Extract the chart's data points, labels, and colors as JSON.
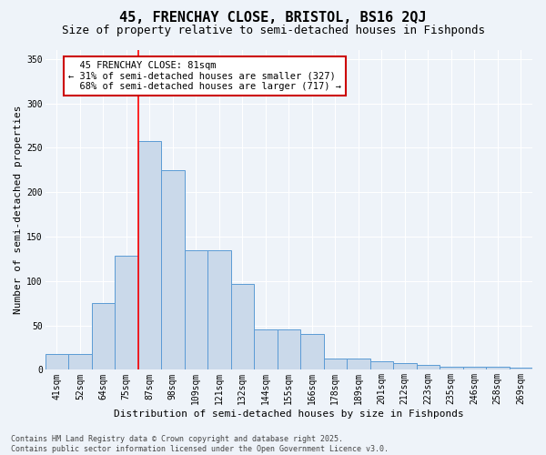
{
  "title_line1": "45, FRENCHAY CLOSE, BRISTOL, BS16 2QJ",
  "title_line2": "Size of property relative to semi-detached houses in Fishponds",
  "xlabel": "Distribution of semi-detached houses by size in Fishponds",
  "ylabel": "Number of semi-detached properties",
  "categories": [
    "41sqm",
    "52sqm",
    "64sqm",
    "75sqm",
    "87sqm",
    "98sqm",
    "109sqm",
    "121sqm",
    "132sqm",
    "144sqm",
    "155sqm",
    "166sqm",
    "178sqm",
    "189sqm",
    "201sqm",
    "212sqm",
    "223sqm",
    "235sqm",
    "246sqm",
    "258sqm",
    "269sqm"
  ],
  "values": [
    18,
    18,
    75,
    128,
    258,
    225,
    135,
    135,
    97,
    45,
    45,
    40,
    13,
    13,
    10,
    8,
    6,
    3,
    3,
    3,
    2
  ],
  "bar_color": "#cad9ea",
  "bar_edge_color": "#5b9bd5",
  "marker_bin_index": 4,
  "red_line_x": 3.5,
  "ylim": [
    0,
    360
  ],
  "yticks": [
    0,
    50,
    100,
    150,
    200,
    250,
    300,
    350
  ],
  "background_color": "#eef3f9",
  "grid_color": "#d0d8e4",
  "white_grid": "#ffffff",
  "property_label": "45 FRENCHAY CLOSE: 81sqm",
  "pct_smaller": 31,
  "n_smaller": 327,
  "pct_larger": 68,
  "n_larger": 717,
  "annotation_box_color": "#ffffff",
  "annotation_box_edge": "#cc0000",
  "title_fontsize": 11,
  "subtitle_fontsize": 9,
  "axis_label_fontsize": 8,
  "tick_fontsize": 7,
  "annotation_fontsize": 7.5,
  "footnote_fontsize": 6,
  "footnote": "Contains HM Land Registry data © Crown copyright and database right 2025.\nContains public sector information licensed under the Open Government Licence v3.0."
}
